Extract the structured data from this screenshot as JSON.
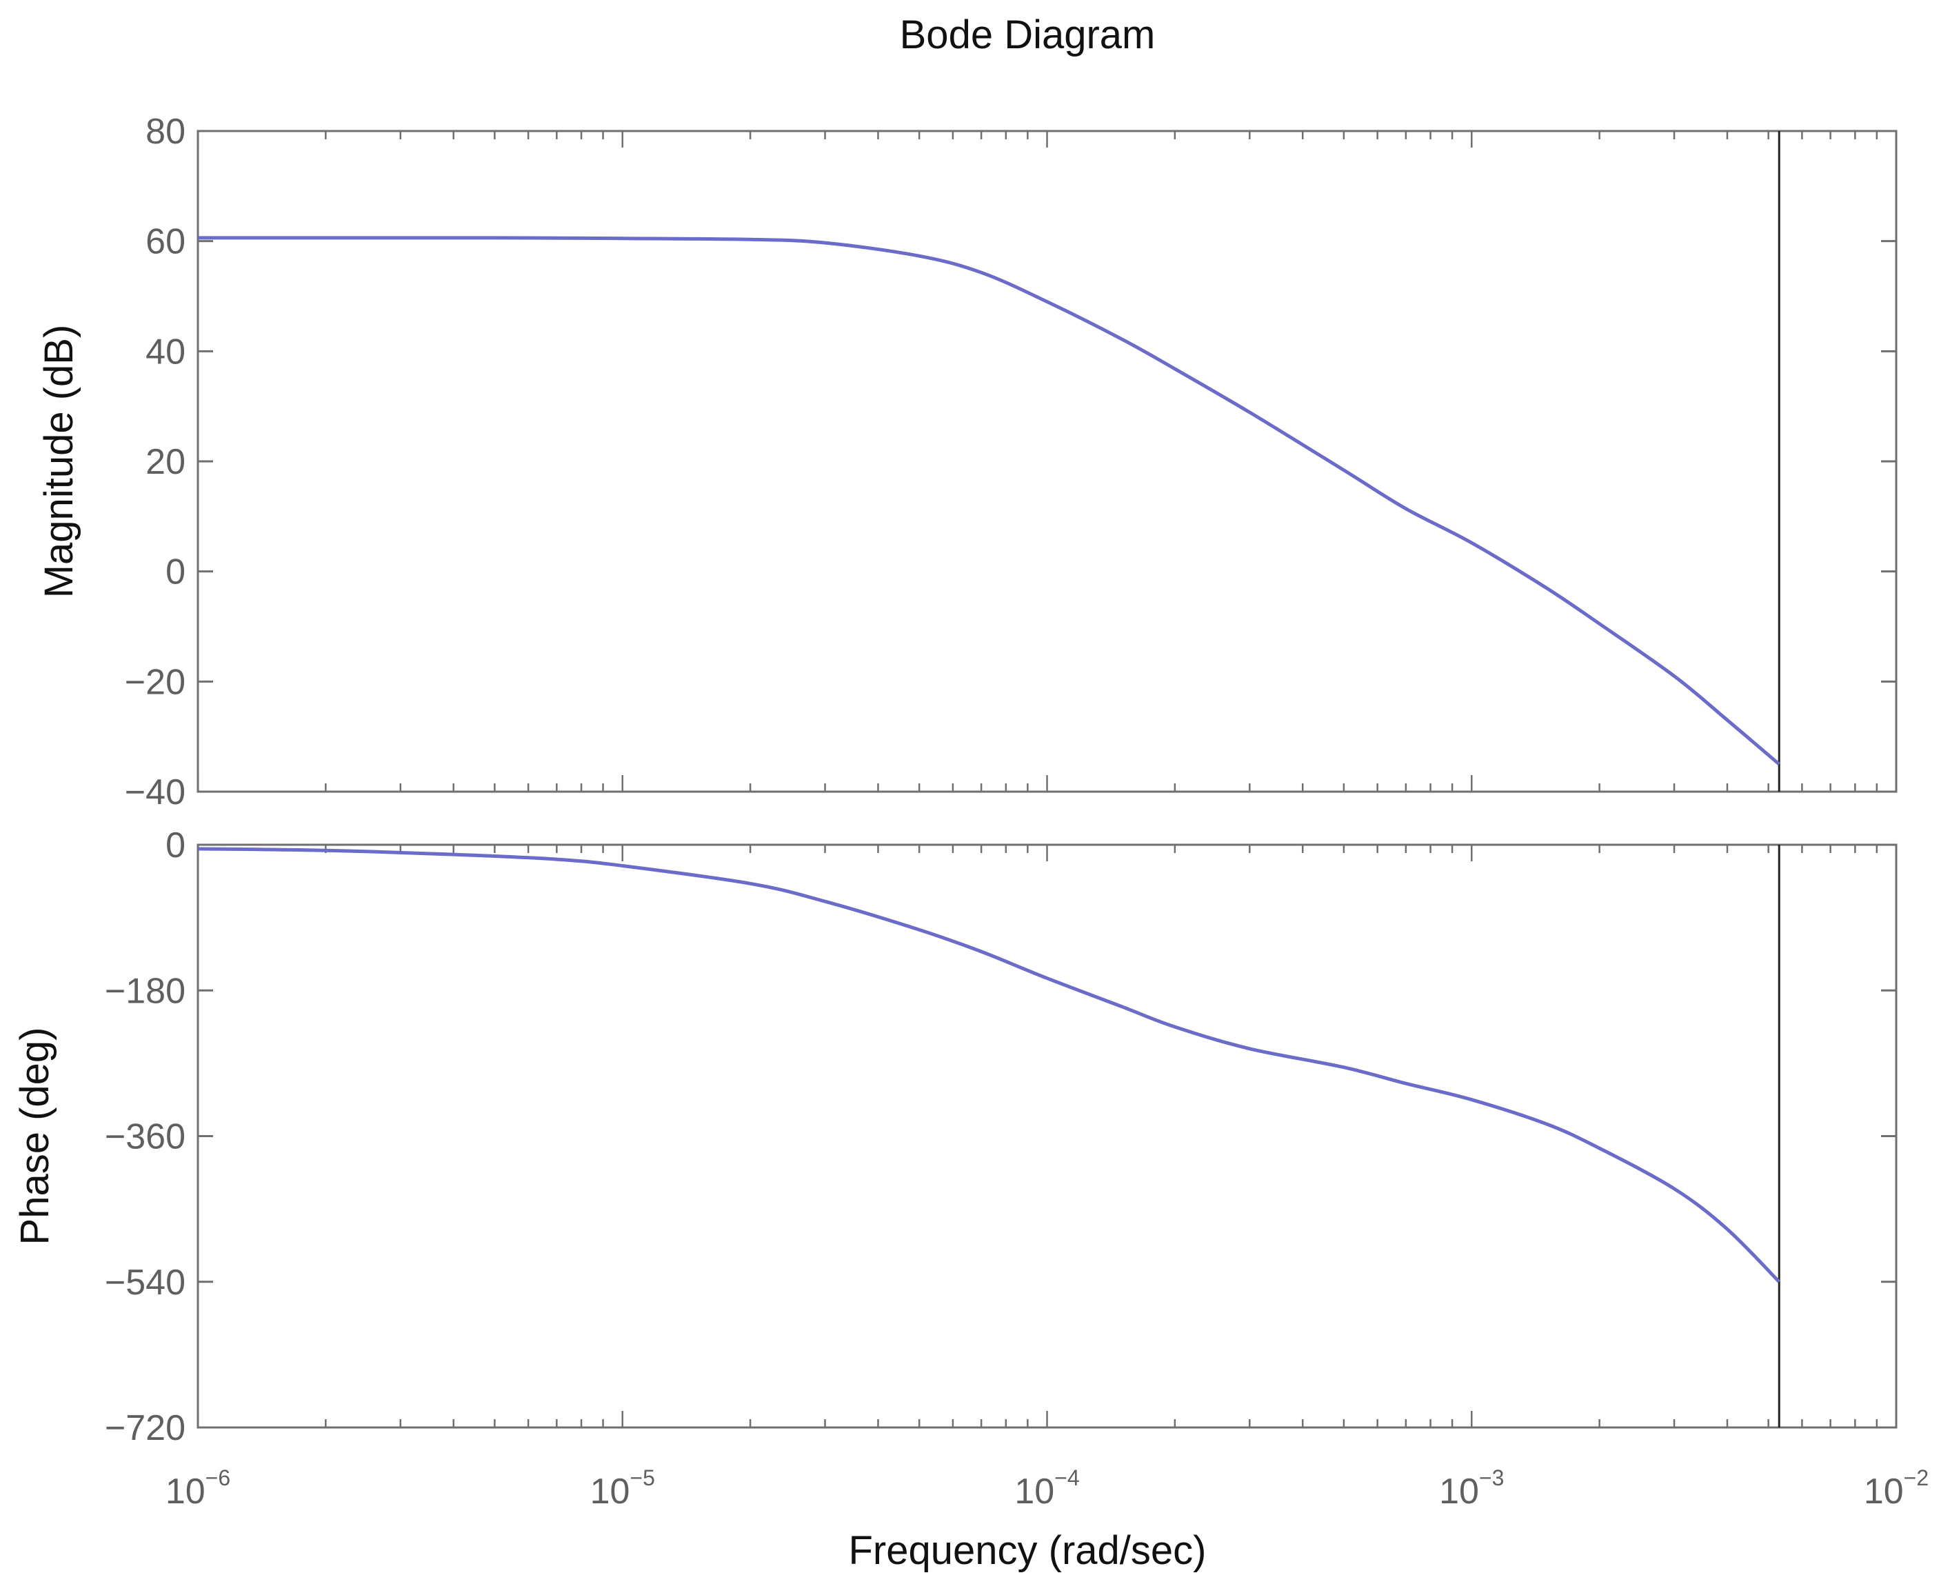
{
  "chart_data": {
    "type": "line",
    "title": "Bode Diagram",
    "xlabel": "Frequency  (rad/sec)",
    "x_scale": "log",
    "xlim": [
      1e-06,
      0.01
    ],
    "x_ticks": [
      {
        "value": 1e-06,
        "base": "10",
        "exp": "−6"
      },
      {
        "value": 1e-05,
        "base": "10",
        "exp": "−5"
      },
      {
        "value": 0.0001,
        "base": "10",
        "exp": "−4"
      },
      {
        "value": 0.001,
        "base": "10",
        "exp": "−3"
      },
      {
        "value": 0.01,
        "base": "10",
        "exp": "−2"
      }
    ],
    "grid": false,
    "colors": {
      "line": "#6b6bc9",
      "axes": "#6f6f6f",
      "marker_line": "#222222"
    },
    "vertical_line_at": 0.0053,
    "panels": [
      {
        "name": "magnitude",
        "ylabel": "Magnitude (dB)",
        "ylim": [
          -40,
          80
        ],
        "y_ticks": [
          {
            "value": 80,
            "label": "80"
          },
          {
            "value": 60,
            "label": "60"
          },
          {
            "value": 40,
            "label": "40"
          },
          {
            "value": 20,
            "label": "20"
          },
          {
            "value": 0,
            "label": "0"
          },
          {
            "value": -20,
            "label": "−20"
          },
          {
            "value": -40,
            "label": "−40"
          }
        ],
        "x": [
          1e-06,
          2e-06,
          5e-06,
          1e-05,
          2e-05,
          3e-05,
          5e-05,
          7e-05,
          0.0001,
          0.00015,
          0.0002,
          0.0003,
          0.0005,
          0.0007,
          0.001,
          0.0015,
          0.002,
          0.003,
          0.004,
          0.0053
        ],
        "y": [
          60.6,
          60.6,
          60.6,
          60.5,
          60.3,
          59.7,
          57.3,
          54.3,
          49.0,
          42.2,
          36.8,
          28.9,
          18.4,
          11.4,
          5.2,
          -3.0,
          -9.5,
          -19.0,
          -27.0,
          -35.0
        ]
      },
      {
        "name": "phase",
        "ylabel": "Phase (deg)",
        "ylim": [
          -720,
          0
        ],
        "y_ticks": [
          {
            "value": 0,
            "label": "0"
          },
          {
            "value": -180,
            "label": "−180"
          },
          {
            "value": -360,
            "label": "−360"
          },
          {
            "value": -540,
            "label": "−540"
          },
          {
            "value": -720,
            "label": "−720"
          }
        ],
        "x": [
          1e-06,
          2e-06,
          4e-06,
          7e-06,
          1e-05,
          2e-05,
          3e-05,
          5e-05,
          7e-05,
          0.0001,
          0.00015,
          0.0002,
          0.0003,
          0.0005,
          0.0007,
          0.001,
          0.0015,
          0.002,
          0.003,
          0.004,
          0.0053
        ],
        "y": [
          -5,
          -7,
          -12,
          -18,
          -26,
          -48,
          -70,
          -105,
          -132,
          -165,
          -200,
          -225,
          -252,
          -275,
          -295,
          -315,
          -345,
          -375,
          -425,
          -475,
          -540
        ]
      }
    ]
  }
}
